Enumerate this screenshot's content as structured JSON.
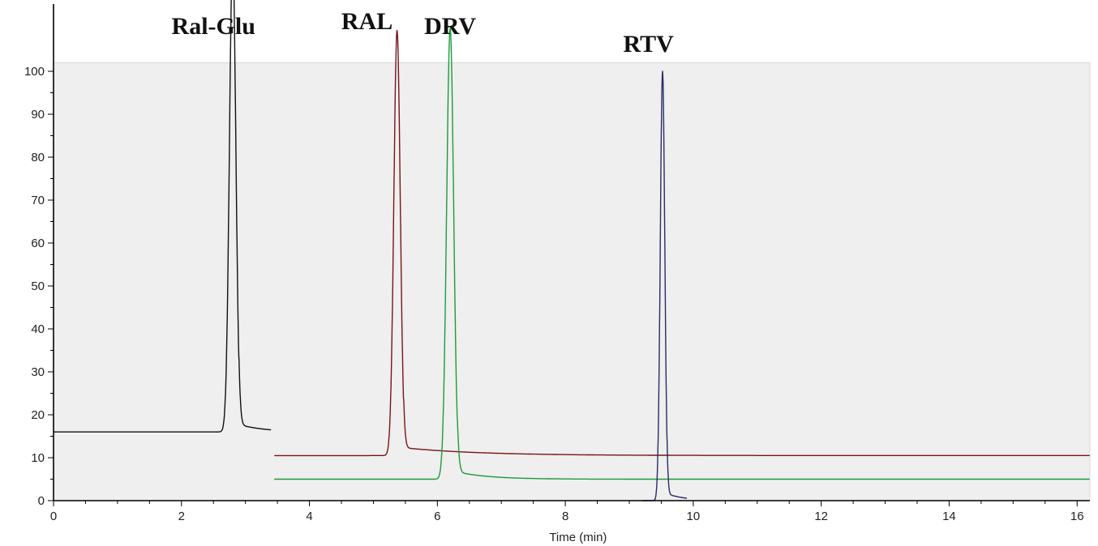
{
  "chart_data": {
    "type": "line",
    "xlabel": "Time (min)",
    "ylabel": "",
    "xlim": [
      0,
      16.2
    ],
    "ylim": [
      0,
      100
    ],
    "x_ticks": [
      0,
      2,
      4,
      6,
      8,
      10,
      12,
      14,
      16
    ],
    "y_ticks": [
      0,
      10,
      20,
      30,
      40,
      50,
      60,
      70,
      80,
      90,
      100
    ],
    "grid": false,
    "colors": {
      "Ral-Glu": "#111111",
      "RAL": "#7a1414",
      "DRV": "#1e9a3a",
      "RTV": "#2a2a6a",
      "plot_area": "#efefef"
    },
    "peak_labels": [
      {
        "text": "Ral-Glu",
        "x": 2.5
      },
      {
        "text": "RAL",
        "x": 4.9
      },
      {
        "text": "DRV",
        "x": 6.2
      },
      {
        "text": "RTV",
        "x": 9.3
      }
    ],
    "series": [
      {
        "key": "Ral-Glu",
        "baseline": 16,
        "x_start": 0,
        "x_end": 3.4,
        "apex": 2.8,
        "height": 111,
        "width": 0.05,
        "tail": 0.4
      },
      {
        "key": "RAL",
        "baseline": 10.5,
        "x_start": 3.45,
        "x_end": 16.2,
        "apex": 5.37,
        "height": 99,
        "width": 0.05,
        "tail": 1.2
      },
      {
        "key": "DRV",
        "baseline": 5,
        "x_start": 3.45,
        "x_end": 16.2,
        "apex": 6.2,
        "height": 105,
        "width": 0.055,
        "tail": 0.5
      },
      {
        "key": "RTV",
        "baseline": 0,
        "x_start": 9.2,
        "x_end": 9.9,
        "apex": 9.52,
        "height": 100,
        "width": 0.035,
        "tail": 0.3
      }
    ]
  }
}
